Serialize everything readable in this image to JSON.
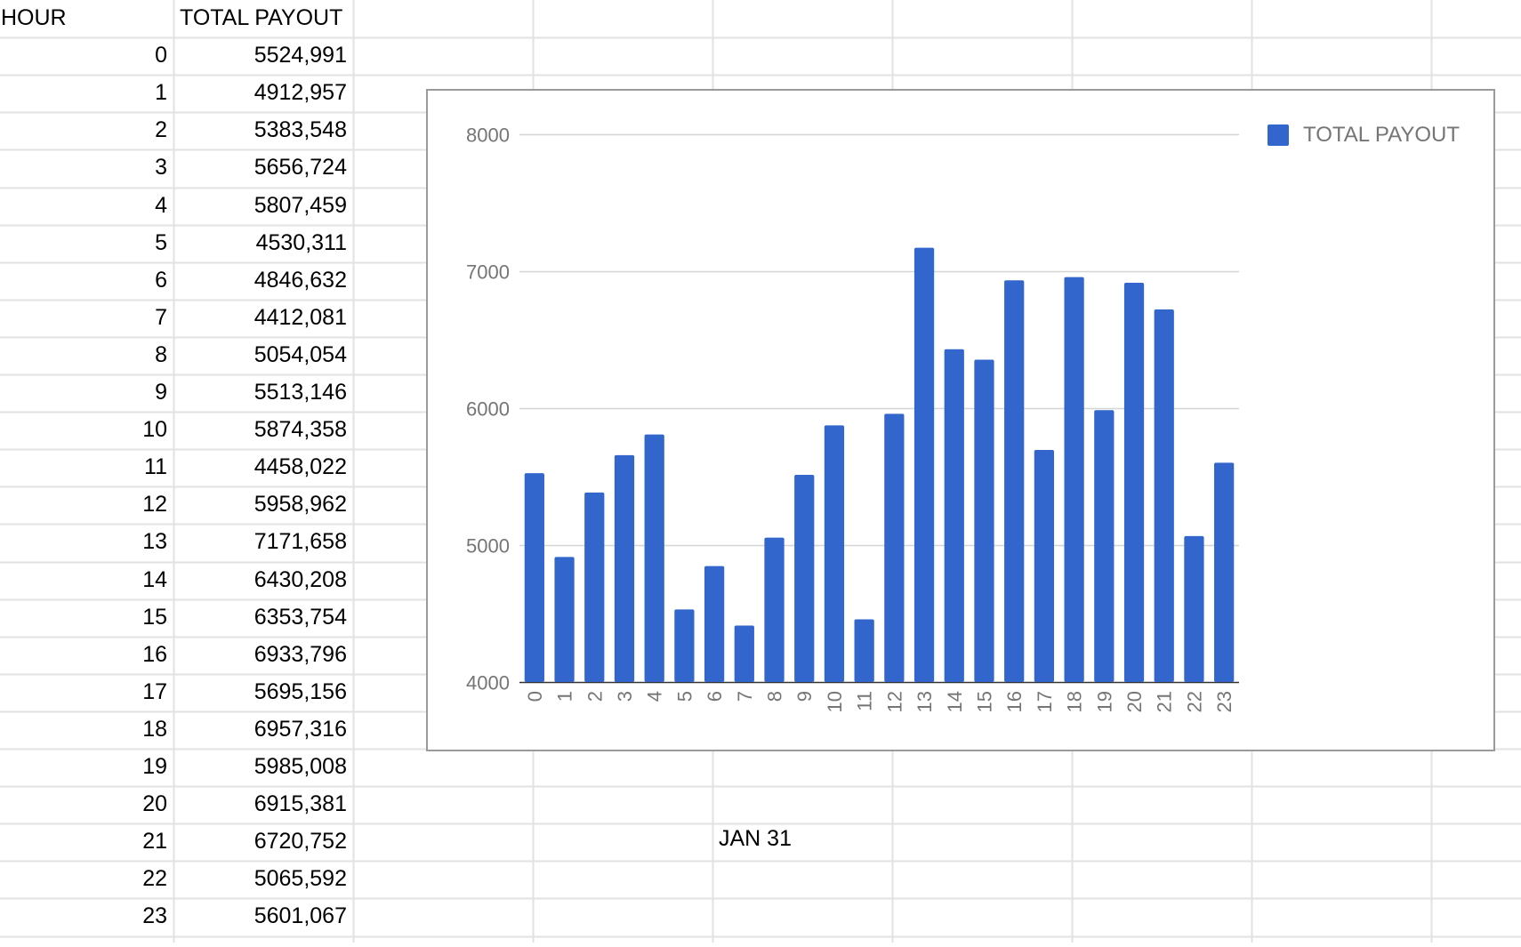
{
  "sheet": {
    "headers": {
      "hour": "HOUR",
      "payout": "TOTAL PAYOUT"
    },
    "rows": [
      {
        "hour": "0",
        "payout": "5524,991"
      },
      {
        "hour": "1",
        "payout": "4912,957"
      },
      {
        "hour": "2",
        "payout": "5383,548"
      },
      {
        "hour": "3",
        "payout": "5656,724"
      },
      {
        "hour": "4",
        "payout": "5807,459"
      },
      {
        "hour": "5",
        "payout": "4530,311"
      },
      {
        "hour": "6",
        "payout": "4846,632"
      },
      {
        "hour": "7",
        "payout": "4412,081"
      },
      {
        "hour": "8",
        "payout": "5054,054"
      },
      {
        "hour": "9",
        "payout": "5513,146"
      },
      {
        "hour": "10",
        "payout": "5874,358"
      },
      {
        "hour": "11",
        "payout": "4458,022"
      },
      {
        "hour": "12",
        "payout": "5958,962"
      },
      {
        "hour": "13",
        "payout": "7171,658"
      },
      {
        "hour": "14",
        "payout": "6430,208"
      },
      {
        "hour": "15",
        "payout": "6353,754"
      },
      {
        "hour": "16",
        "payout": "6933,796"
      },
      {
        "hour": "17",
        "payout": "5695,156"
      },
      {
        "hour": "18",
        "payout": "6957,316"
      },
      {
        "hour": "19",
        "payout": "5985,008"
      },
      {
        "hour": "20",
        "payout": "6915,381"
      },
      {
        "hour": "21",
        "payout": "6720,752"
      },
      {
        "hour": "22",
        "payout": "5065,592"
      },
      {
        "hour": "23",
        "payout": "5601,067"
      }
    ],
    "note": "JAN 31"
  },
  "chart_data": {
    "type": "bar",
    "categories": [
      "0",
      "1",
      "2",
      "3",
      "4",
      "5",
      "6",
      "7",
      "8",
      "9",
      "10",
      "11",
      "12",
      "13",
      "14",
      "15",
      "16",
      "17",
      "18",
      "19",
      "20",
      "21",
      "22",
      "23"
    ],
    "series": [
      {
        "name": "TOTAL PAYOUT",
        "color": "#3366cc",
        "values": [
          5524.991,
          4912.957,
          5383.548,
          5656.724,
          5807.459,
          4530.311,
          4846.632,
          4412.081,
          5054.054,
          5513.146,
          5874.358,
          4458.022,
          5958.962,
          7171.658,
          6430.208,
          6353.754,
          6933.796,
          5695.156,
          6957.316,
          5985.008,
          6915.381,
          6720.752,
          5065.592,
          5601.067
        ]
      }
    ],
    "ylim": [
      4000,
      8000
    ],
    "yticks": [
      "4000",
      "5000",
      "6000",
      "7000",
      "8000"
    ],
    "grid": true,
    "legend": "top-right",
    "title": "",
    "xlabel": "",
    "ylabel": ""
  },
  "colors": {
    "gridline": "#e2e2e2",
    "chart_gridline": "#d5d5d5",
    "axis_text": "#757575",
    "bar": "#3366cc"
  }
}
